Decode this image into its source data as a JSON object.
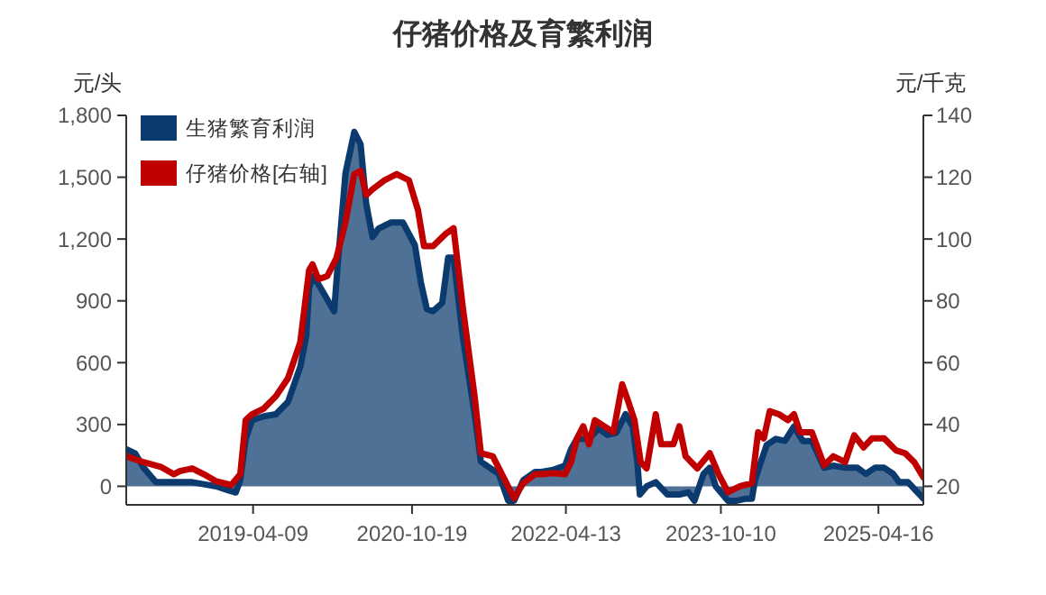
{
  "chart_data": {
    "type": "area",
    "title": "仔猪价格及育繁利润",
    "ylabel": "元/头",
    "y2label": "元/千克",
    "legend": "top left",
    "xlim": [
      "2018-01-18",
      "2025-09-21"
    ],
    "xticks": [
      "2019-04-09",
      "2020-10-19",
      "2022-04-13",
      "2023-10-10",
      "2025-04-16"
    ],
    "ylim": [
      -90,
      1800
    ],
    "yticks": [
      0,
      300,
      600,
      900,
      {
        "value": 1200,
        "label": "1,200"
      },
      {
        "value": 1500,
        "label": "1,500"
      },
      {
        "value": 1800,
        "label": "1,800"
      }
    ],
    "y2lim": [
      14,
      140
    ],
    "y2ticks": [
      20,
      40,
      60,
      80,
      100,
      120,
      140
    ],
    "series": [
      {
        "name": "生猪繁育利润",
        "color": "#0b3a6e",
        "x": [
          "2018-01-19",
          "2018-02-18",
          "2018-03-20",
          "2018-05-02",
          "2018-06-13",
          "2018-07-25",
          "2018-09-07",
          "2018-10-18",
          "2018-12-01",
          "2019-01-12",
          "2019-02-07",
          "2019-02-23",
          "2019-03-14",
          "2019-04-05",
          "2019-05-17",
          "2019-06-28",
          "2019-08-10",
          "2019-09-22",
          "2019-10-13",
          "2019-10-23",
          "2019-11-04",
          "2019-11-25",
          "2019-12-16",
          "2020-01-06",
          "2020-01-19",
          "2020-02-01",
          "2020-02-28",
          "2020-03-30",
          "2020-04-21",
          "2020-05-11",
          "2020-06-02",
          "2020-06-23",
          "2020-08-05",
          "2020-09-17",
          "2020-10-29",
          "2020-11-19",
          "2020-12-10",
          "2021-01-01",
          "2021-02-02",
          "2021-02-23",
          "2021-03-14",
          "2021-04-15",
          "2021-05-27",
          "2021-06-18",
          "2021-07-19",
          "2021-08-20",
          "2021-09-22",
          "2021-10-13",
          "2021-11-14",
          "2021-12-26",
          "2022-01-17",
          "2022-02-28",
          "2022-04-10",
          "2022-05-01",
          "2022-05-22",
          "2022-07-03",
          "2022-08-05",
          "2022-09-06",
          "2022-10-07",
          "2022-11-09",
          "2022-12-04",
          "2022-12-20",
          "2022-12-29",
          "2023-01-22",
          "2023-02-23",
          "2023-04-05",
          "2023-05-17",
          "2023-06-18",
          "2023-07-09",
          "2023-08-10",
          "2023-09-01",
          "2023-09-22",
          "2023-11-04",
          "2023-12-05",
          "2024-01-06",
          "2024-01-27",
          "2024-02-07",
          "2024-02-28",
          "2024-03-19",
          "2024-04-20",
          "2024-05-22",
          "2024-06-23",
          "2024-07-24",
          "2024-08-25",
          "2024-10-07",
          "2024-11-08",
          "2024-12-20",
          "2025-02-01",
          "2025-03-03",
          "2025-04-04",
          "2025-05-06",
          "2025-06-07",
          "2025-06-28",
          "2025-07-29",
          "2025-09-01",
          "2025-09-21"
        ],
        "values": [
          180,
          160,
          90,
          20,
          20,
          20,
          20,
          10,
          0,
          -20,
          -30,
          30,
          230,
          320,
          340,
          350,
          410,
          580,
          730,
          960,
          1020,
          980,
          930,
          880,
          850,
          1080,
          1520,
          1720,
          1660,
          1370,
          1210,
          1250,
          1280,
          1280,
          1170,
          990,
          860,
          850,
          890,
          1110,
          1110,
          730,
          350,
          120,
          90,
          60,
          -70,
          -70,
          30,
          70,
          70,
          80,
          100,
          180,
          230,
          230,
          280,
          250,
          260,
          350,
          290,
          120,
          -40,
          0,
          20,
          -40,
          -40,
          -30,
          -70,
          60,
          90,
          0,
          -70,
          -70,
          -60,
          -60,
          30,
          120,
          200,
          230,
          220,
          290,
          220,
          220,
          90,
          100,
          90,
          90,
          60,
          90,
          90,
          60,
          20,
          20,
          -30,
          -60
        ]
      },
      {
        "name": "仔猪价格[右轴]",
        "type": "line",
        "axis": "y2",
        "color": "#c00000",
        "x": [
          "2018-01-19",
          "2018-03-20",
          "2018-05-22",
          "2018-07-04",
          "2018-07-25",
          "2018-09-07",
          "2018-10-18",
          "2018-12-01",
          "2019-01-22",
          "2019-02-23",
          "2019-03-14",
          "2019-04-05",
          "2019-05-17",
          "2019-06-28",
          "2019-08-10",
          "2019-09-22",
          "2019-10-23",
          "2019-11-04",
          "2019-11-25",
          "2019-12-26",
          "2020-01-27",
          "2020-02-28",
          "2020-03-30",
          "2020-04-21",
          "2020-05-11",
          "2020-06-02",
          "2020-07-14",
          "2020-08-26",
          "2020-10-08",
          "2020-11-09",
          "2020-11-30",
          "2021-01-01",
          "2021-02-13",
          "2021-03-14",
          "2021-04-15",
          "2021-05-27",
          "2021-06-18",
          "2021-07-30",
          "2021-09-11",
          "2021-10-13",
          "2021-11-14",
          "2021-12-26",
          "2022-01-17",
          "2022-02-28",
          "2022-04-10",
          "2022-05-01",
          "2022-05-22",
          "2022-06-13",
          "2022-07-03",
          "2022-07-24",
          "2022-08-26",
          "2022-09-27",
          "2022-10-28",
          "2022-11-19",
          "2022-12-10",
          "2023-01-01",
          "2023-01-22",
          "2023-02-23",
          "2023-03-14",
          "2023-04-26",
          "2023-05-17",
          "2023-06-08",
          "2023-07-19",
          "2023-09-01",
          "2023-10-02",
          "2023-11-04",
          "2023-12-16",
          "2024-01-27",
          "2024-02-18",
          "2024-03-09",
          "2024-03-30",
          "2024-05-01",
          "2024-06-02",
          "2024-06-23",
          "2024-07-14",
          "2024-08-25",
          "2024-10-07",
          "2024-11-08",
          "2024-12-20",
          "2025-01-21",
          "2025-02-23",
          "2025-03-24",
          "2025-05-06",
          "2025-06-17",
          "2025-07-19",
          "2025-08-20",
          "2025-09-21"
        ],
        "values": [
          29.7,
          27.8,
          26.2,
          23.9,
          24.9,
          25.8,
          23.9,
          21.6,
          20.4,
          23.9,
          41.4,
          43.3,
          45.2,
          49.1,
          55,
          66.6,
          89.9,
          91.8,
          87,
          88,
          93.8,
          105.4,
          121,
          122,
          114.2,
          116.1,
          119,
          121,
          119,
          109.3,
          97.7,
          97.7,
          101.6,
          103.5,
          78.3,
          49.1,
          30.7,
          29.7,
          21.9,
          16.1,
          21,
          23.9,
          23.9,
          24.3,
          23.9,
          27.8,
          35.5,
          39.4,
          33.6,
          41.4,
          39.4,
          37.5,
          53,
          47.2,
          41.4,
          27.8,
          25.8,
          43.3,
          33.6,
          33.6,
          39.4,
          29.7,
          25.8,
          30.7,
          23.9,
          18.1,
          20,
          21,
          37.5,
          35.5,
          44.3,
          43.3,
          41.4,
          43.3,
          37.5,
          37.5,
          26.8,
          29.7,
          27.8,
          36.5,
          32.6,
          35.5,
          35.5,
          31.6,
          30.7,
          27.8,
          22.9
        ]
      }
    ]
  }
}
